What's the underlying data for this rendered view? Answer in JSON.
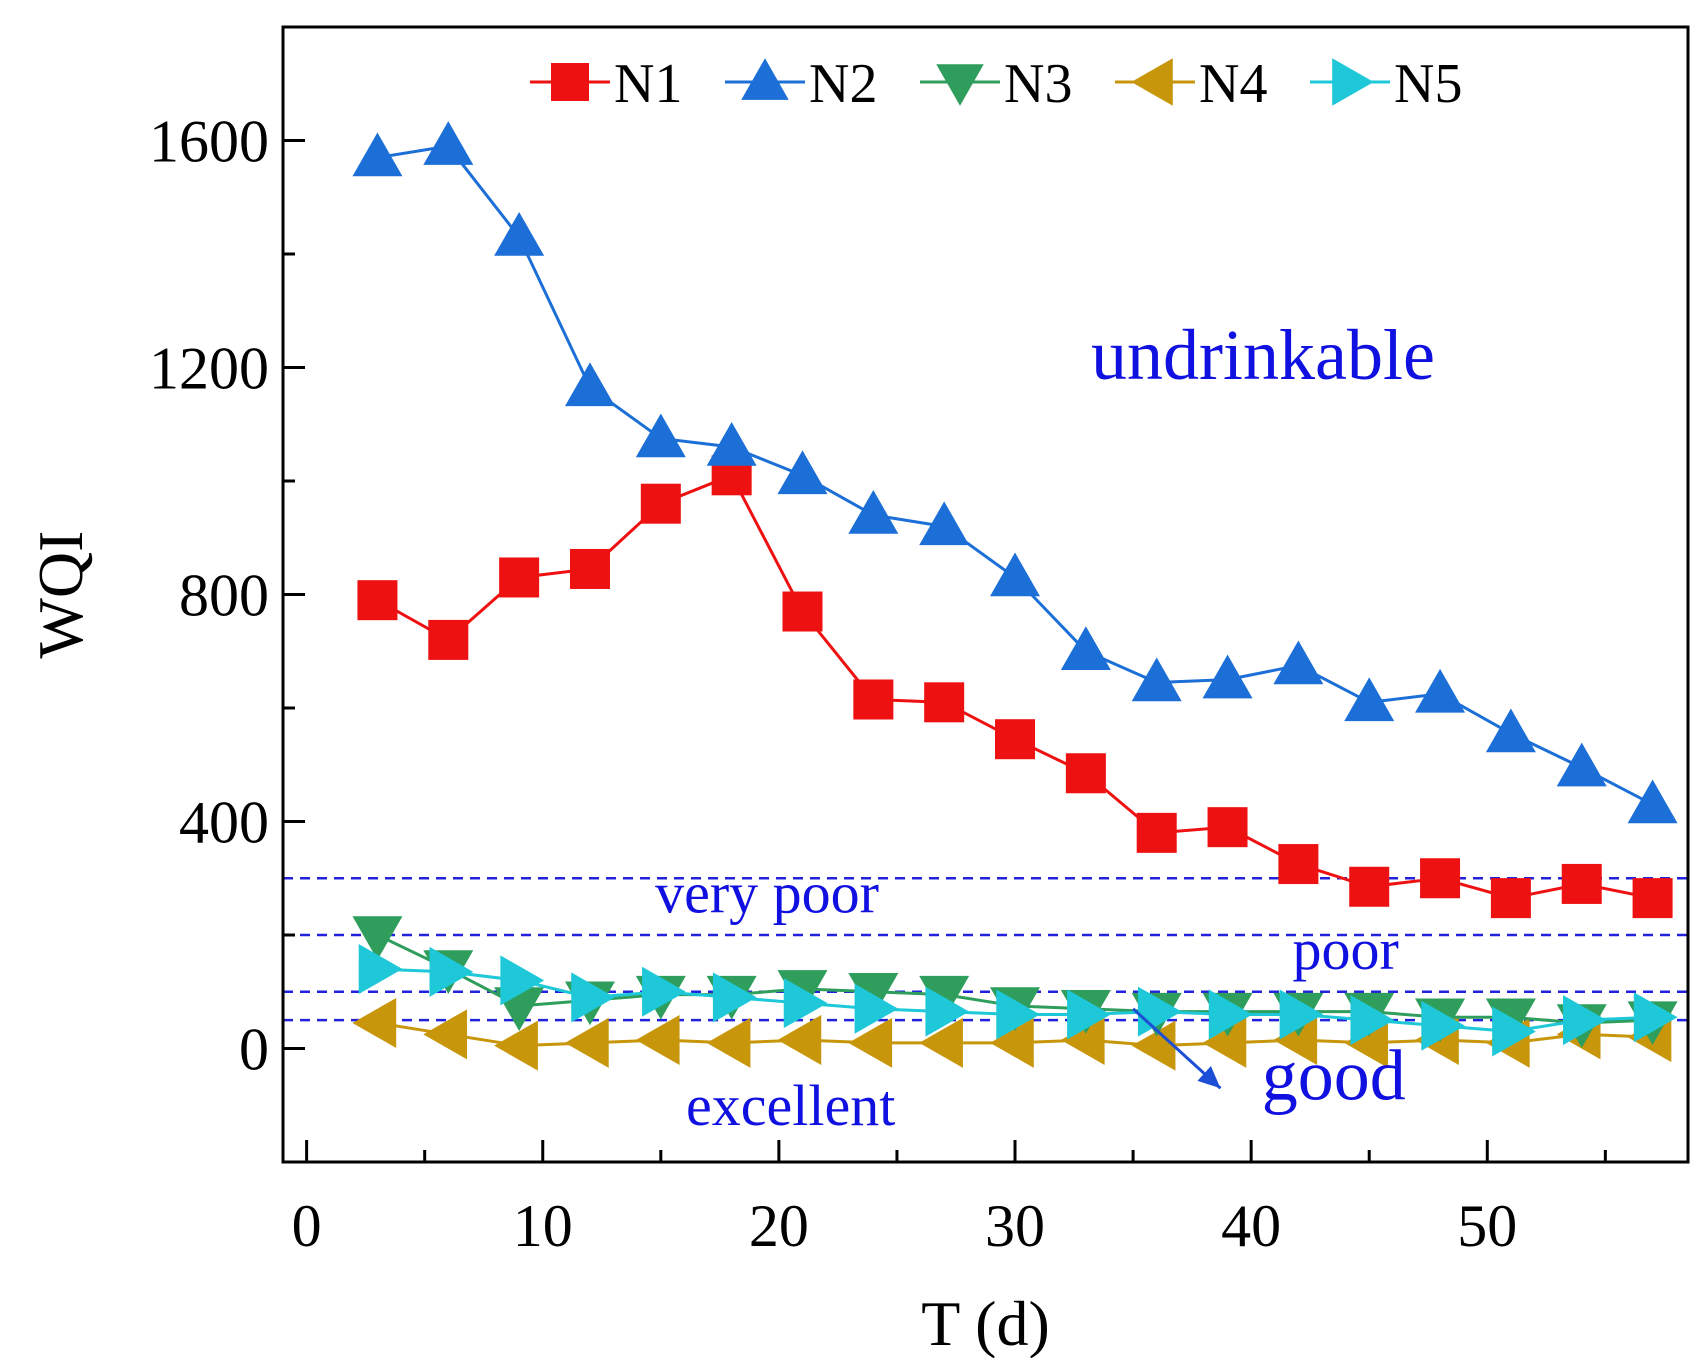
{
  "chart_data": {
    "type": "line",
    "title": "",
    "xlabel": "T (d)",
    "ylabel": "WQI",
    "xlim": [
      -1,
      58.5
    ],
    "ylim": [
      -200,
      1800
    ],
    "xticks": [
      0,
      10,
      20,
      30,
      40,
      50
    ],
    "xtick_labels": [
      "0",
      "10",
      "20",
      "30",
      "40",
      "50"
    ],
    "yticks": [
      0,
      400,
      800,
      1200,
      1600
    ],
    "ytick_labels": [
      "0",
      "400",
      "800",
      "1200",
      "1600"
    ],
    "grid": false,
    "legend_position": "top",
    "x": [
      3,
      6,
      9,
      12,
      15,
      18,
      21,
      24,
      27,
      30,
      33,
      36,
      39,
      42,
      45,
      48,
      51,
      54,
      57
    ],
    "series": [
      {
        "name": "N1",
        "color": "#ee1111",
        "marker": "square",
        "values": [
          790,
          720,
          830,
          845,
          960,
          1010,
          770,
          615,
          610,
          545,
          485,
          380,
          390,
          325,
          285,
          300,
          265,
          290,
          265
        ]
      },
      {
        "name": "N2",
        "color": "#1c6fd6",
        "marker": "triangle-up",
        "values": [
          1570,
          1590,
          1430,
          1165,
          1075,
          1060,
          1010,
          940,
          920,
          830,
          700,
          645,
          650,
          675,
          610,
          625,
          555,
          495,
          430
        ]
      },
      {
        "name": "N3",
        "color": "#2f9e5c",
        "marker": "triangle-down",
        "values": [
          200,
          140,
          75,
          85,
          95,
          95,
          105,
          100,
          95,
          75,
          70,
          65,
          65,
          65,
          65,
          55,
          55,
          45,
          50
        ]
      },
      {
        "name": "N4",
        "color": "#c8960a",
        "marker": "triangle-left",
        "values": [
          45,
          25,
          5,
          10,
          15,
          10,
          15,
          10,
          10,
          10,
          15,
          5,
          10,
          15,
          10,
          15,
          10,
          25,
          20
        ]
      },
      {
        "name": "N5",
        "color": "#1ec8d8",
        "marker": "triangle-right",
        "values": [
          140,
          135,
          120,
          90,
          100,
          90,
          80,
          70,
          65,
          60,
          60,
          65,
          60,
          60,
          50,
          40,
          30,
          50,
          55
        ]
      }
    ],
    "thresholds": [
      {
        "value": 300,
        "color": "#2222dd"
      },
      {
        "value": 200,
        "color": "#2222dd"
      },
      {
        "value": 100,
        "color": "#2222dd"
      },
      {
        "value": 50,
        "color": "#2222dd"
      }
    ],
    "annotations": [
      {
        "text": "undrinkable",
        "x": 40.5,
        "y": 1180
      },
      {
        "text": "very poor",
        "x": 19.5,
        "y": 240
      },
      {
        "text": "poor",
        "x": 44,
        "y": 140
      },
      {
        "text": "good",
        "x": 43.5,
        "y": -90
      },
      {
        "text": "excellent",
        "x": 20.5,
        "y": -135
      }
    ],
    "arrow": {
      "from": [
        35,
        70
      ],
      "to": [
        38.7,
        -70
      ],
      "color": "#1c4fd6"
    }
  }
}
